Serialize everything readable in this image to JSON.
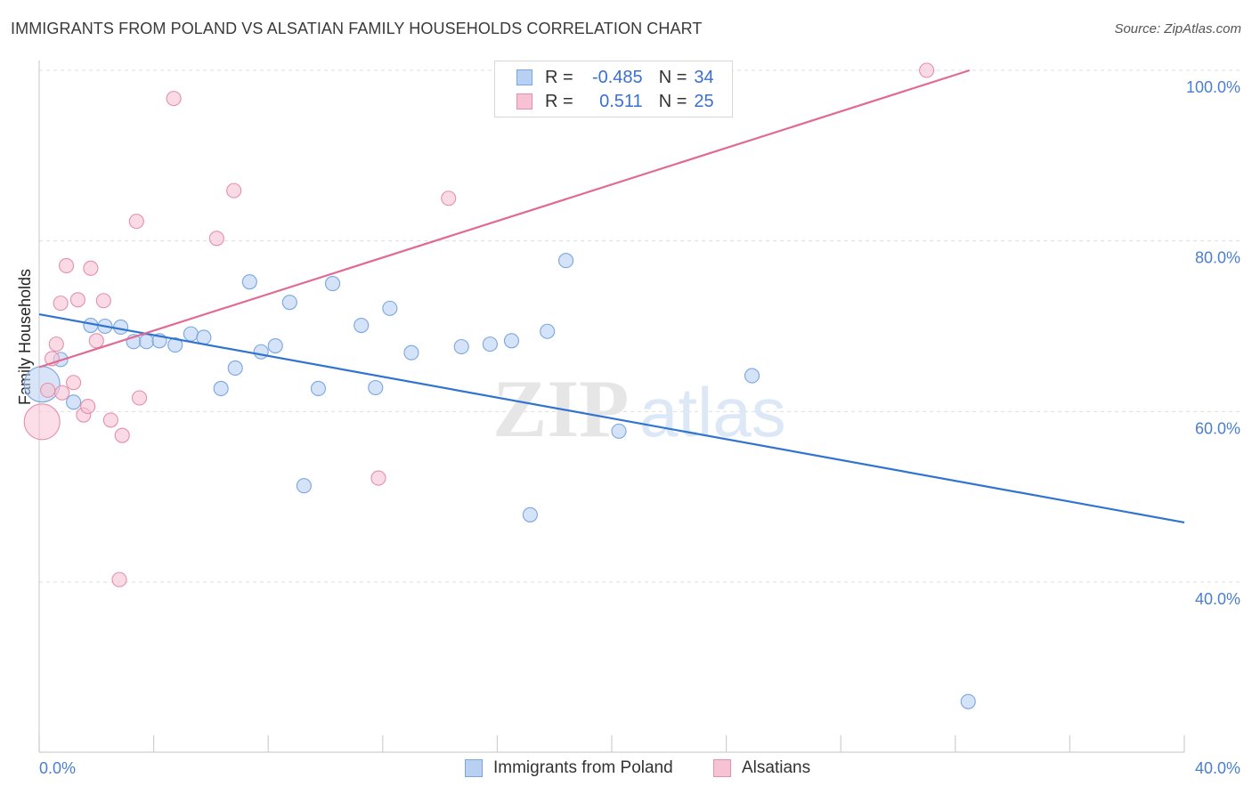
{
  "title": "IMMIGRANTS FROM POLAND VS ALSATIAN FAMILY HOUSEHOLDS CORRELATION CHART",
  "source": "Source: ZipAtlas.com",
  "watermark": {
    "zip": "ZIP",
    "atlas": "atlas"
  },
  "colors": {
    "blue_fill": "#b8d0f2",
    "blue_stroke": "#7aa6e0",
    "blue_line": "#2f74d0",
    "pink_fill": "#f7c3d4",
    "pink_stroke": "#e58fab",
    "pink_line": "#e06a94",
    "tick_text": "#4a7fd0"
  },
  "legend_top": {
    "rows": [
      {
        "r_label": "R =",
        "r_value": "-0.485",
        "n_label": "N =",
        "n_value": "34",
        "series": "blue"
      },
      {
        "r_label": "R =",
        "r_value": "0.511",
        "n_label": "N =",
        "n_value": "25",
        "series": "pink"
      }
    ]
  },
  "legend_bottom": [
    {
      "label": "Immigrants from Poland",
      "series": "blue"
    },
    {
      "label": "Alsatians",
      "series": "pink"
    }
  ],
  "chart_data": {
    "type": "scatter",
    "title": "IMMIGRANTS FROM POLAND VS ALSATIAN FAMILY HOUSEHOLDS CORRELATION CHART",
    "ylabel": "Family Households",
    "xlabel": "",
    "xlim": [
      0,
      40
    ],
    "ylim": [
      20,
      102
    ],
    "x_ticks_labeled": [
      "0.0%",
      "40.0%"
    ],
    "y_ticks": [
      {
        "value": 100,
        "label": "100.0%"
      },
      {
        "value": 80,
        "label": "80.0%"
      },
      {
        "value": 60,
        "label": "60.0%"
      },
      {
        "value": 40,
        "label": "40.0%"
      }
    ],
    "grid": true,
    "legend_position": "top-center",
    "series": [
      {
        "name": "Immigrants from Poland",
        "color": "blue",
        "r": -0.485,
        "n": 34,
        "trend": {
          "x0": 0,
          "y0": 71.4,
          "x1": 40,
          "y1": 47.0
        },
        "points": [
          [
            0.1,
            63.2,
            "large"
          ],
          [
            0.75,
            66.1
          ],
          [
            1.2,
            61.1
          ],
          [
            1.8,
            70.1
          ],
          [
            2.3,
            70.0
          ],
          [
            2.85,
            69.9
          ],
          [
            3.3,
            68.2
          ],
          [
            3.75,
            68.2
          ],
          [
            4.2,
            68.3
          ],
          [
            4.75,
            67.8
          ],
          [
            5.3,
            69.1
          ],
          [
            5.75,
            68.7
          ],
          [
            6.35,
            62.7
          ],
          [
            6.85,
            65.1
          ],
          [
            7.35,
            75.2
          ],
          [
            7.75,
            67.0
          ],
          [
            8.25,
            67.7
          ],
          [
            8.75,
            72.8
          ],
          [
            9.25,
            51.3
          ],
          [
            9.75,
            62.7
          ],
          [
            10.25,
            75.0
          ],
          [
            11.25,
            70.1
          ],
          [
            11.75,
            62.8
          ],
          [
            12.25,
            72.1
          ],
          [
            13.0,
            66.9
          ],
          [
            14.75,
            67.6
          ],
          [
            15.75,
            67.9
          ],
          [
            16.5,
            68.3
          ],
          [
            17.15,
            47.9
          ],
          [
            17.75,
            69.4
          ],
          [
            18.4,
            77.7
          ],
          [
            20.25,
            57.7
          ],
          [
            24.9,
            64.2
          ],
          [
            32.45,
            26.0
          ]
        ]
      },
      {
        "name": "Alsatians",
        "color": "pink",
        "r": 0.511,
        "n": 25,
        "trend": {
          "x0": 0,
          "y0": 65.2,
          "x1": 32.5,
          "y1": 100.0
        },
        "points": [
          [
            0.1,
            58.8,
            "large"
          ],
          [
            0.3,
            62.5
          ],
          [
            0.45,
            66.2
          ],
          [
            0.6,
            67.9
          ],
          [
            0.8,
            62.2
          ],
          [
            0.75,
            72.7
          ],
          [
            0.95,
            77.1
          ],
          [
            1.2,
            63.4
          ],
          [
            1.35,
            73.1
          ],
          [
            1.55,
            59.6
          ],
          [
            1.7,
            60.6
          ],
          [
            1.8,
            76.8
          ],
          [
            2.0,
            68.3
          ],
          [
            2.25,
            73.0
          ],
          [
            2.5,
            59.0
          ],
          [
            2.8,
            40.3
          ],
          [
            2.9,
            57.2
          ],
          [
            3.4,
            82.3
          ],
          [
            3.5,
            61.6
          ],
          [
            4.7,
            96.7
          ],
          [
            6.2,
            80.3
          ],
          [
            6.8,
            85.9
          ],
          [
            11.85,
            52.2
          ],
          [
            14.3,
            85.0
          ],
          [
            31.0,
            100.0
          ]
        ]
      }
    ]
  }
}
